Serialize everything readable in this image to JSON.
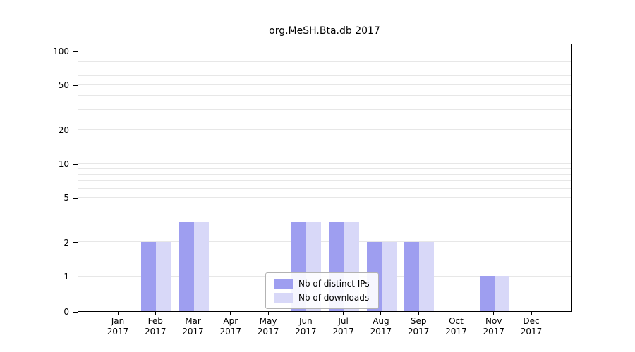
{
  "title": "org.MeSH.Bta.db 2017",
  "chart_data": {
    "type": "bar",
    "title": "org.MeSH.Bta.db 2017",
    "categories": [
      "Jan",
      "Feb",
      "Mar",
      "Apr",
      "May",
      "Jun",
      "Jul",
      "Aug",
      "Sep",
      "Oct",
      "Nov",
      "Dec"
    ],
    "year_label": "2017",
    "series": [
      {
        "name": "Nb of distinct IPs",
        "color": "#9e9ef0",
        "values": [
          0,
          2,
          3,
          0,
          0,
          3,
          3,
          2,
          2,
          0,
          1,
          0
        ]
      },
      {
        "name": "Nb of downloads",
        "color": "#d8d8f8",
        "values": [
          0,
          2,
          3,
          0,
          0,
          3,
          3,
          2,
          2,
          0,
          1,
          0
        ]
      }
    ],
    "yticks": [
      0,
      1,
      2,
      5,
      10,
      20,
      50,
      100
    ],
    "minor_gridlines": [
      1,
      2,
      3,
      4,
      5,
      6,
      7,
      8,
      9,
      10,
      20,
      30,
      40,
      50,
      60,
      70,
      80,
      90,
      100
    ],
    "ylim": [
      0,
      100
    ],
    "scale": "log-with-zero-baseline",
    "grid": "horizontal-minor",
    "legend_position": "lower-center-inside"
  }
}
